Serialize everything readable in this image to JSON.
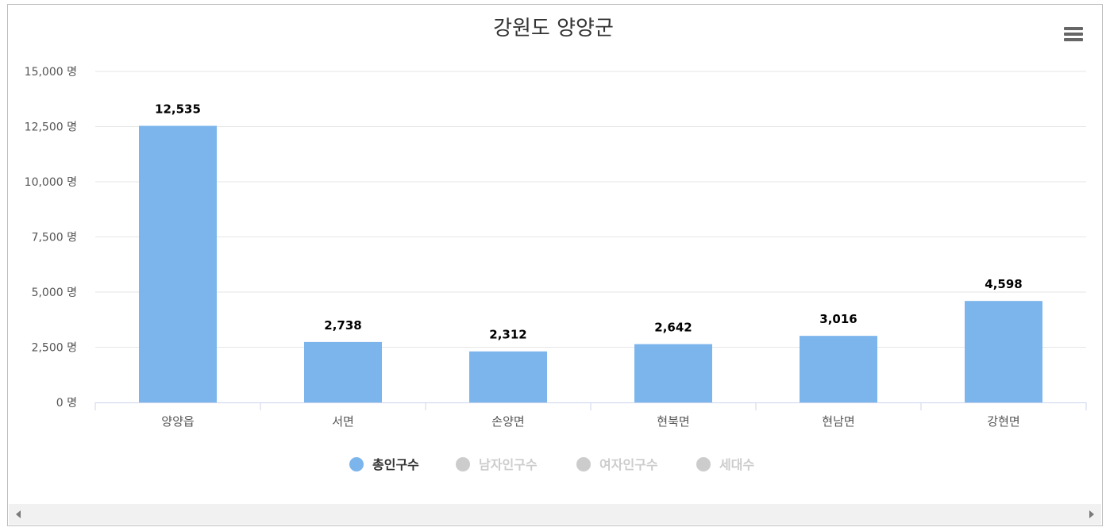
{
  "chart_data": {
    "type": "bar",
    "title": "강원도 양양군",
    "xlabel": "",
    "ylabel": "",
    "categories": [
      "양양읍",
      "서면",
      "손양면",
      "현북면",
      "현남면",
      "강현면"
    ],
    "series": [
      {
        "name": "총인구수",
        "values": [
          12535,
          2738,
          2312,
          2642,
          3016,
          4598
        ],
        "color": "#7cb5ec",
        "visible": true
      },
      {
        "name": "남자인구수",
        "visible": false,
        "color": "#cccccc"
      },
      {
        "name": "여자인구수",
        "visible": false,
        "color": "#cccccc"
      },
      {
        "name": "세대수",
        "visible": false,
        "color": "#cccccc"
      }
    ],
    "ylim": [
      0,
      15000
    ],
    "yticks": [
      0,
      2500,
      5000,
      7500,
      10000,
      12500,
      15000
    ],
    "ytick_labels": [
      "0 명",
      "2,500 명",
      "5,000 명",
      "7,500 명",
      "10,000 명",
      "12,500 명",
      "15,000 명"
    ],
    "data_labels": [
      "12,535",
      "2,738",
      "2,312",
      "2,642",
      "3,016",
      "4,598"
    ],
    "grid": true,
    "legend_position": "bottom-center"
  },
  "icons": {
    "menu": "hamburger-menu-icon",
    "scroll_left": "arrow-left-icon",
    "scroll_right": "arrow-right-icon"
  }
}
